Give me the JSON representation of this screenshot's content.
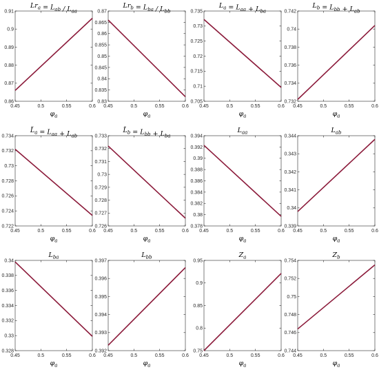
{
  "chart_data": [
    {
      "type": "line",
      "title": "Lr_a = L_ab / L_aa",
      "xlabel": "φ_a",
      "x": [
        0.45,
        0.6
      ],
      "xlim": [
        0.45,
        0.6
      ],
      "xticks": [
        "0.45",
        "0.5",
        "0.55",
        "0.6"
      ],
      "ylim": [
        0.86,
        0.91
      ],
      "yticks": [
        "0.86",
        "0.87",
        "0.88",
        "0.89",
        "0.9",
        "0.91"
      ],
      "series": [
        {
          "values": [
            0.866,
            0.906
          ]
        }
      ]
    },
    {
      "type": "line",
      "title": "Lr_b = L_ba / L_bb",
      "xlabel": "φ_a",
      "x": [
        0.45,
        0.6
      ],
      "xlim": [
        0.45,
        0.6
      ],
      "xticks": [
        "0.45",
        "0.5",
        "0.55",
        "0.6"
      ],
      "ylim": [
        0.83,
        0.87
      ],
      "yticks": [
        "0.83",
        "0.835",
        "0.84",
        "0.845",
        "0.85",
        "0.855",
        "0.86",
        "0.865",
        "0.87"
      ],
      "series": [
        {
          "values": [
            0.866,
            0.832
          ]
        }
      ]
    },
    {
      "type": "line",
      "title": "L_a = L_aa + L_ba",
      "xlabel": "φ_a",
      "x": [
        0.45,
        0.6
      ],
      "xlim": [
        0.45,
        0.6
      ],
      "xticks": [
        "0.45",
        "0.5",
        "0.55",
        "0.6"
      ],
      "ylim": [
        0.705,
        0.735
      ],
      "yticks": [
        "0.705",
        "0.71",
        "0.715",
        "0.72",
        "0.725",
        "0.73",
        "0.735"
      ],
      "series": [
        {
          "values": [
            0.7322,
            0.7096
          ]
        }
      ]
    },
    {
      "type": "line",
      "title": "L_b = L_bb + L_ab",
      "xlabel": "φ_a",
      "x": [
        0.45,
        0.6
      ],
      "xlim": [
        0.45,
        0.6
      ],
      "xticks": [
        "0.45",
        "0.5",
        "0.55",
        "0.6"
      ],
      "ylim": [
        0.732,
        0.742
      ],
      "yticks": [
        "0.732",
        "0.734",
        "0.736",
        "0.738",
        "0.74",
        "0.742"
      ],
      "series": [
        {
          "values": [
            0.7322,
            0.7404
          ]
        }
      ]
    },
    {
      "type": "line",
      "title": "L̃_a = L_aa + L_ab",
      "xlabel": "φ_a",
      "x": [
        0.45,
        0.6
      ],
      "xlim": [
        0.45,
        0.6
      ],
      "xticks": [
        "0.45",
        "0.5",
        "0.55",
        "0.6"
      ],
      "ylim": [
        0.722,
        0.734
      ],
      "yticks": [
        "0.722",
        "0.724",
        "0.726",
        "0.728",
        "0.73",
        "0.732",
        "0.734"
      ],
      "series": [
        {
          "values": [
            0.7322,
            0.7234
          ]
        }
      ]
    },
    {
      "type": "line",
      "title": "L̃_b = L_bb + L_ba",
      "xlabel": "φ_a",
      "x": [
        0.45,
        0.6
      ],
      "xlim": [
        0.45,
        0.6
      ],
      "xticks": [
        "0.45",
        "0.5",
        "0.55",
        "0.6"
      ],
      "ylim": [
        0.726,
        0.733
      ],
      "yticks": [
        "0.726",
        "0.727",
        "0.728",
        "0.729",
        "0.73",
        "0.731",
        "0.732",
        "0.733"
      ],
      "series": [
        {
          "values": [
            0.7322,
            0.7266
          ]
        }
      ]
    },
    {
      "type": "line",
      "title": "L_aa",
      "xlabel": "φ_a",
      "x": [
        0.45,
        0.6
      ],
      "xlim": [
        0.45,
        0.6
      ],
      "xticks": [
        "0.45",
        "0.5",
        "0.55",
        "0.6"
      ],
      "ylim": [
        0.378,
        0.394
      ],
      "yticks": [
        "0.378",
        "0.38",
        "0.382",
        "0.384",
        "0.386",
        "0.388",
        "0.39",
        "0.392",
        "0.394"
      ],
      "series": [
        {
          "values": [
            0.3923,
            0.3797
          ]
        }
      ]
    },
    {
      "type": "line",
      "title": "L_ab",
      "xlabel": "φ_a",
      "x": [
        0.45,
        0.6
      ],
      "xlim": [
        0.45,
        0.6
      ],
      "xticks": [
        "0.45",
        "0.5",
        "0.55",
        "0.6"
      ],
      "ylim": [
        0.339,
        0.344
      ],
      "yticks": [
        "0.339",
        "0.34",
        "0.341",
        "0.342",
        "0.343",
        "0.344"
      ],
      "series": [
        {
          "values": [
            0.3398,
            0.3438
          ]
        }
      ]
    },
    {
      "type": "line",
      "title": "L_ba",
      "xlabel": "φ_a",
      "x": [
        0.45,
        0.6
      ],
      "xlim": [
        0.45,
        0.6
      ],
      "xticks": [
        "0.45",
        "0.5",
        "0.55",
        "0.6"
      ],
      "ylim": [
        0.328,
        0.34
      ],
      "yticks": [
        "0.328",
        "0.33",
        "0.332",
        "0.334",
        "0.336",
        "0.338",
        "0.34"
      ],
      "series": [
        {
          "values": [
            0.3398,
            0.3299
          ]
        }
      ]
    },
    {
      "type": "line",
      "title": "L_bb",
      "xlabel": "φ_a",
      "x": [
        0.45,
        0.6
      ],
      "xlim": [
        0.45,
        0.6
      ],
      "xticks": [
        "0.45",
        "0.5",
        "0.55",
        "0.6"
      ],
      "ylim": [
        0.392,
        0.397
      ],
      "yticks": [
        "0.392",
        "0.393",
        "0.394",
        "0.395",
        "0.396",
        "0.397"
      ],
      "series": [
        {
          "values": [
            0.3923,
            0.3966
          ]
        }
      ]
    },
    {
      "type": "line",
      "title": "Z_a",
      "xlabel": "φ_a",
      "x": [
        0.45,
        0.6
      ],
      "xlim": [
        0.45,
        0.6
      ],
      "xticks": [
        "0.45",
        "0.5",
        "0.55",
        "0.6"
      ],
      "ylim": [
        0.75,
        0.95
      ],
      "yticks": [
        "0.75",
        "0.8",
        "0.85",
        "0.9",
        "0.95"
      ],
      "series": [
        {
          "values": [
            0.75,
            0.921
          ]
        }
      ]
    },
    {
      "type": "line",
      "title": "Z_b",
      "xlabel": "φ_a",
      "x": [
        0.45,
        0.6
      ],
      "xlim": [
        0.45,
        0.6
      ],
      "xticks": [
        "0.45",
        "0.5",
        "0.55",
        "0.6"
      ],
      "ylim": [
        0.744,
        0.754
      ],
      "yticks": [
        "0.744",
        "0.746",
        "0.748",
        "0.75",
        "0.752",
        "0.754"
      ],
      "series": [
        {
          "values": [
            0.7464,
            0.7535
          ]
        }
      ]
    }
  ],
  "colors": {
    "line": "#8b1a3a",
    "axis": "#262626"
  }
}
